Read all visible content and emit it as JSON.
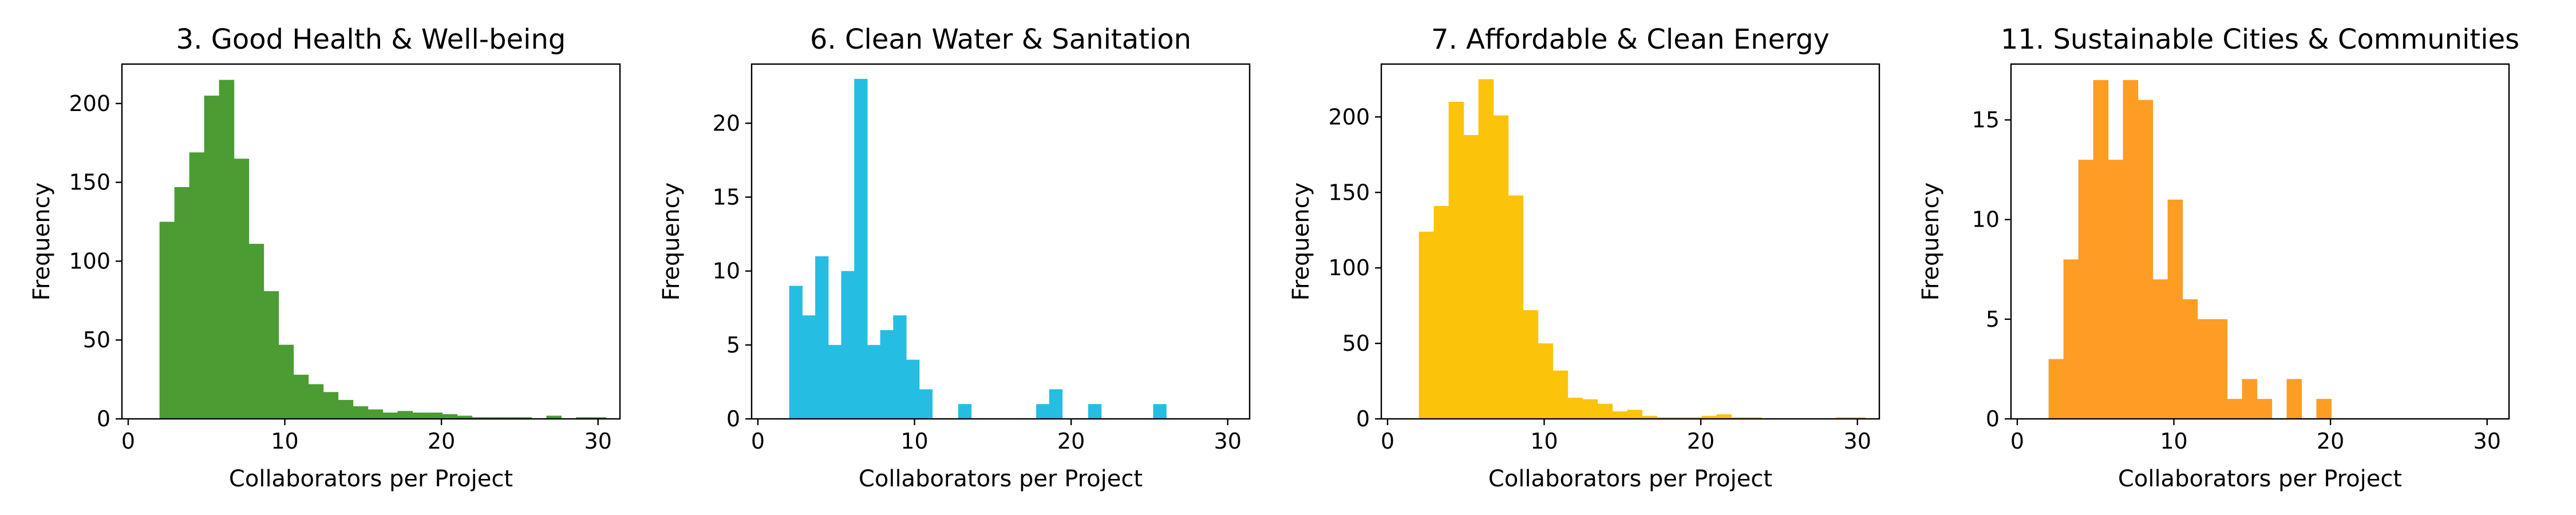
{
  "chart_data": [
    {
      "type": "bar",
      "title": "3. Good Health & Well-being",
      "xlabel": "Collaborators per Project",
      "ylabel": "Frequency",
      "xlim": [
        -0.4,
        31.4
      ],
      "ylim": [
        0,
        225
      ],
      "xticks": [
        0,
        10,
        20,
        30
      ],
      "yticks": [
        0,
        50,
        100,
        150,
        200
      ],
      "color": "#4b9c33",
      "bin_start": 2,
      "bin_width": 0.95,
      "values": [
        125,
        147,
        169,
        205,
        215,
        165,
        111,
        81,
        47,
        28,
        22,
        17,
        12,
        8,
        6,
        4,
        5,
        4,
        4,
        3,
        2,
        1,
        1,
        1,
        1,
        0,
        2,
        0,
        1,
        1
      ]
    },
    {
      "type": "bar",
      "title": "6. Clean Water & Sanitation",
      "xlabel": "Collaborators per Project",
      "ylabel": "Frequency",
      "xlim": [
        -0.4,
        31.4
      ],
      "ylim": [
        0,
        24
      ],
      "xticks": [
        0,
        10,
        20,
        30
      ],
      "yticks": [
        0,
        5,
        10,
        15,
        20
      ],
      "color": "#26bde2",
      "bin_start": 2,
      "bin_width": 0.83,
      "values": [
        9,
        7,
        11,
        5,
        10,
        23,
        5,
        6,
        7,
        4,
        2,
        0,
        0,
        1,
        0,
        0,
        0,
        0,
        0,
        1,
        2,
        0,
        0,
        1,
        0,
        0,
        0,
        0,
        1,
        0
      ]
    },
    {
      "type": "bar",
      "title": "7. Affordable & Clean Energy",
      "xlabel": "Collaborators per Project",
      "ylabel": "Frequency",
      "xlim": [
        -0.4,
        31.4
      ],
      "ylim": [
        0,
        235
      ],
      "xticks": [
        0,
        10,
        20,
        30
      ],
      "yticks": [
        0,
        50,
        100,
        150,
        200
      ],
      "color": "#fcc30b",
      "bin_start": 2,
      "bin_width": 0.95,
      "values": [
        124,
        141,
        210,
        188,
        225,
        201,
        148,
        72,
        50,
        32,
        14,
        13,
        10,
        5,
        6,
        2,
        1,
        1,
        1,
        2,
        3,
        1,
        1,
        0,
        0,
        0,
        0,
        0,
        1,
        1
      ]
    },
    {
      "type": "bar",
      "title": "11.  Sustainable Cities & Communities",
      "xlabel": "Collaborators per Project",
      "ylabel": "Frequency",
      "xlim": [
        -0.4,
        31.4
      ],
      "ylim": [
        0,
        17.8
      ],
      "xticks": [
        0,
        10,
        20,
        30
      ],
      "yticks": [
        0,
        5,
        10,
        15
      ],
      "color": "#fd9d24",
      "bin_start": 2,
      "bin_width": 0.95,
      "values": [
        3,
        8,
        13,
        17,
        13,
        17,
        16,
        7,
        11,
        6,
        5,
        5,
        1,
        2,
        1,
        0,
        2,
        0,
        1,
        0,
        0,
        0,
        0,
        0,
        0,
        0,
        0,
        0,
        0,
        0
      ]
    }
  ]
}
